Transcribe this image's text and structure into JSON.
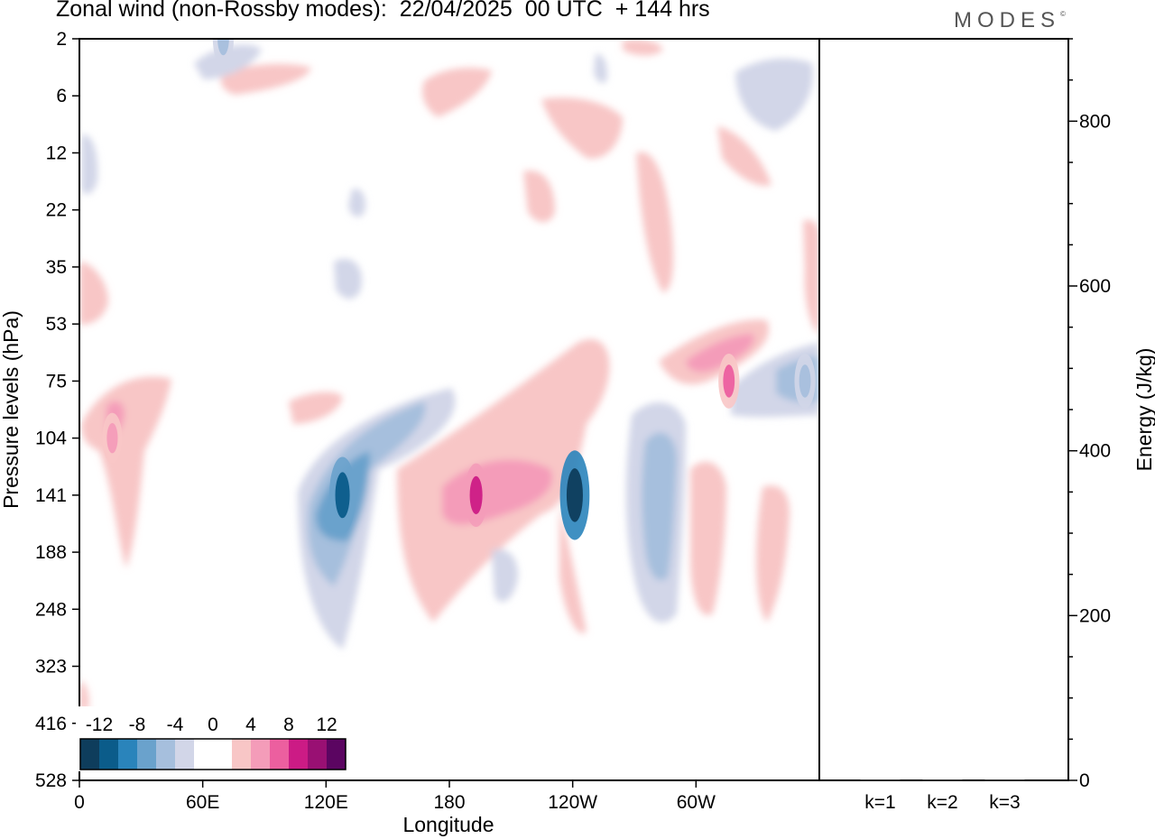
{
  "title": "Zonal wind (non-Rossby modes):  22/04/2025  00 UTC  + 144 hrs",
  "logo": {
    "text": "MODES",
    "mark": "©"
  },
  "chart_data": [
    {
      "type": "heatmap",
      "xlabel": "Longitude",
      "ylabel": "Pressure levels (hPa)",
      "x_ticks": [
        "0",
        "60E",
        "120E",
        "180",
        "120W",
        "60W"
      ],
      "x_tick_degrees": [
        0,
        60,
        120,
        180,
        240,
        300
      ],
      "xlim": [
        0,
        360
      ],
      "y_ticks": [
        "2",
        "6",
        "12",
        "22",
        "35",
        "53",
        "75",
        "104",
        "141",
        "188",
        "248",
        "323",
        "416",
        "528"
      ],
      "colorbar": {
        "labels": [
          "-12",
          "-8",
          "-4",
          "0",
          "4",
          "8",
          "12"
        ],
        "colors": [
          "#0e3d5c",
          "#0b5c8a",
          "#2a84bb",
          "#6aa2cc",
          "#a6bfdd",
          "#d2d6e8",
          "#ffffff",
          "#ffffff",
          "#f8c6c6",
          "#f49cb9",
          "#ec5f9f",
          "#cc1b85",
          "#991073",
          "#5b0561"
        ]
      },
      "features": [
        {
          "lon": 128,
          "level": "141",
          "value": -11
        },
        {
          "lon": 241,
          "level": "141",
          "value": -14
        },
        {
          "lon": 193,
          "level": "141",
          "value": 8
        },
        {
          "lon": 316,
          "level": "75",
          "value": 6
        },
        {
          "lon": 16,
          "level": "104",
          "value": 5
        },
        {
          "lon": 353,
          "level": "75",
          "value": -6
        },
        {
          "lon": 70,
          "level": "2",
          "value": -6
        }
      ]
    },
    {
      "type": "bar",
      "categories": [
        "k=1",
        "k=2",
        "k=3"
      ],
      "values": [
        1,
        1,
        1
      ],
      "ylabel": "Energy (J/kg)",
      "y_ticks": [
        "0",
        "200",
        "400",
        "600",
        "800"
      ],
      "ylim": [
        0,
        900
      ]
    }
  ]
}
